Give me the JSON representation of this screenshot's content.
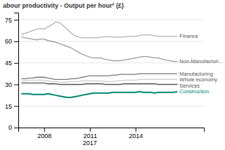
{
  "chart_data": {
    "type": "line",
    "title": "abour productivity - Output per hour² (£)",
    "x": [
      2006.5,
      2006.75,
      2007.0,
      2007.25,
      2007.5,
      2007.75,
      2008.0,
      2008.25,
      2008.5,
      2008.75,
      2009.0,
      2009.25,
      2009.5,
      2009.75,
      2010.0,
      2010.25,
      2010.5,
      2010.75,
      2011.0,
      2011.25,
      2011.5,
      2011.75,
      2012.0,
      2012.25,
      2012.5,
      2012.75,
      2013.0,
      2013.25,
      2013.5,
      2013.75,
      2014.0,
      2014.25,
      2014.5,
      2014.75,
      2015.0,
      2015.25,
      2015.5,
      2015.75,
      2016.0,
      2016.25,
      2016.5,
      2016.75
    ],
    "series": [
      {
        "name": "Whole economy",
        "color": "#cccccc",
        "values": [
          32.5,
          32.5,
          33.0,
          33.0,
          33.0,
          33.0,
          33.0,
          32.5,
          32.0,
          32.0,
          31.5,
          31.5,
          31.5,
          32.0,
          32.0,
          32.0,
          32.5,
          32.5,
          32.5,
          32.5,
          32.5,
          32.5,
          32.0,
          32.0,
          32.0,
          32.5,
          32.5,
          33.0,
          33.0,
          33.0,
          33.0,
          33.5,
          33.5,
          33.5,
          33.5,
          33.5,
          33.5,
          33.5,
          33.5,
          33.5,
          33.5,
          33.5
        ]
      },
      {
        "name": "Non-Manufacturi...",
        "color": "#999999",
        "values": [
          63.0,
          62.5,
          62.0,
          61.5,
          61.0,
          61.5,
          61.5,
          60.5,
          60.0,
          59.5,
          58.5,
          57.5,
          56.5,
          55.5,
          54.0,
          52.5,
          51.0,
          50.0,
          49.0,
          48.5,
          48.5,
          48.5,
          47.5,
          47.0,
          46.5,
          46.5,
          46.5,
          47.0,
          47.5,
          48.0,
          48.5,
          49.0,
          49.5,
          49.5,
          49.0,
          48.5,
          48.5,
          47.5,
          47.0,
          46.5,
          46.0,
          46.0
        ]
      },
      {
        "name": "Finance",
        "color": "#b0b0b0",
        "values": [
          65.0,
          65.5,
          66.5,
          67.5,
          68.5,
          69.0,
          68.5,
          70.0,
          71.5,
          73.5,
          73.0,
          71.0,
          68.5,
          66.0,
          64.0,
          63.0,
          62.5,
          62.5,
          62.5,
          62.5,
          62.5,
          63.0,
          63.0,
          63.5,
          63.0,
          63.0,
          63.0,
          63.0,
          63.5,
          63.5,
          63.5,
          64.0,
          64.5,
          64.5,
          64.5,
          64.0,
          63.5,
          63.5,
          63.5,
          63.5,
          63.5,
          63.5
        ]
      },
      {
        "name": "Services",
        "color": "#555555",
        "values": [
          31.0,
          31.0,
          31.0,
          31.0,
          31.0,
          31.0,
          31.0,
          30.5,
          30.5,
          30.5,
          30.0,
          30.0,
          30.0,
          30.0,
          30.0,
          30.0,
          30.0,
          30.5,
          30.5,
          30.5,
          30.5,
          30.5,
          30.0,
          30.0,
          30.0,
          30.0,
          30.0,
          30.5,
          30.5,
          30.5,
          30.5,
          30.5,
          30.5,
          30.5,
          30.5,
          30.5,
          30.0,
          30.0,
          30.0,
          30.0,
          30.0,
          30.0
        ]
      },
      {
        "name": "Manufacturing",
        "color": "#777777",
        "values": [
          34.0,
          34.0,
          34.5,
          34.5,
          35.0,
          35.0,
          35.0,
          34.5,
          34.0,
          33.5,
          33.5,
          33.5,
          33.5,
          34.0,
          34.0,
          34.5,
          35.0,
          35.5,
          36.0,
          36.0,
          36.0,
          36.0,
          36.0,
          36.0,
          36.5,
          36.5,
          37.0,
          37.0,
          37.0,
          37.0,
          37.0,
          37.5,
          37.5,
          37.5,
          37.5,
          37.5,
          37.5,
          37.5,
          37.5,
          37.5,
          37.5,
          37.5
        ]
      },
      {
        "name": "Construction",
        "color": "#008674",
        "values": [
          23.5,
          23.5,
          23.5,
          23.0,
          23.0,
          23.0,
          23.0,
          23.5,
          23.0,
          22.5,
          22.0,
          21.5,
          21.0,
          21.0,
          21.5,
          22.0,
          22.5,
          23.0,
          23.5,
          24.0,
          24.0,
          24.0,
          24.0,
          24.0,
          24.5,
          24.5,
          24.5,
          24.5,
          24.5,
          24.5,
          24.5,
          25.0,
          24.5,
          24.5,
          24.5,
          24.0,
          24.5,
          24.5,
          24.5,
          24.5,
          24.5,
          25.0
        ]
      }
    ],
    "xlim": [
      2006.3,
      2018.5
    ],
    "xticks": [
      2008,
      2011,
      2014
    ],
    "ylim": [
      0,
      80
    ],
    "yticks": [
      0,
      15,
      30,
      45,
      60,
      75
    ],
    "grid": true,
    "annotations": [
      {
        "text": "2017",
        "x": 2011
      }
    ]
  }
}
